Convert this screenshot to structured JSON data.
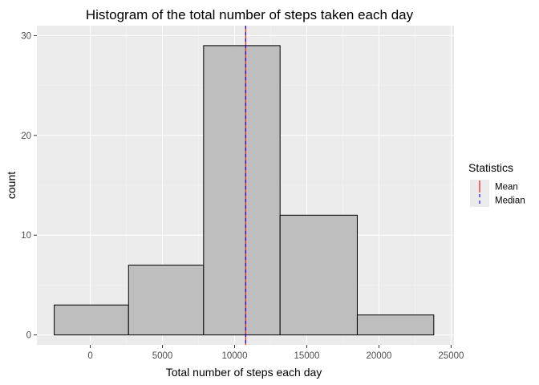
{
  "chart_data": {
    "type": "bar",
    "title": "Histogram of the total number of steps taken each day",
    "xlabel": "Total number of steps each day",
    "ylabel": "count",
    "bins": [
      {
        "x0": -2500,
        "x1": 2650,
        "count": 3
      },
      {
        "x0": 2650,
        "x1": 7850,
        "count": 7
      },
      {
        "x0": 7850,
        "x1": 13150,
        "count": 29
      },
      {
        "x0": 13150,
        "x1": 18500,
        "count": 12
      },
      {
        "x0": 18500,
        "x1": 23800,
        "count": 2
      }
    ],
    "xlim": [
      -3700,
      25200
    ],
    "ylim": [
      -1,
      31
    ],
    "xticks": [
      0,
      5000,
      10000,
      15000,
      20000,
      25000
    ],
    "xtick_labels": [
      "0",
      "5000",
      "10000",
      "15000",
      "20000",
      "25000"
    ],
    "yticks": [
      0,
      10,
      20,
      30
    ],
    "ytick_labels": [
      "0",
      "10",
      "20",
      "30"
    ],
    "vlines": [
      {
        "name": "Mean",
        "value": 10766,
        "color": "#ff0000",
        "style": "solid"
      },
      {
        "name": "Median",
        "value": 10765,
        "color": "#0000ff",
        "style": "dashed"
      }
    ],
    "bar_fill": "#bebebe",
    "bar_stroke": "#000000",
    "panel_background": "#ebebeb",
    "grid": true,
    "legend": {
      "title": "Statistics",
      "position": "right",
      "entries": [
        "Mean",
        "Median"
      ]
    }
  }
}
